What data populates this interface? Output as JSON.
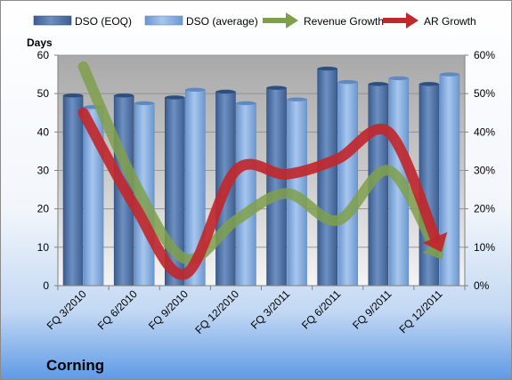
{
  "chart_data": {
    "type": "bar",
    "categories": [
      "FQ 3/2010",
      "FQ 6/2010",
      "FQ 9/2010",
      "FQ 12/2010",
      "FQ 3/2011",
      "FQ 6/2011",
      "FQ 9/2011",
      "FQ 12/2011"
    ],
    "series": [
      {
        "name": "DSO (EOQ)",
        "type": "bar",
        "axis": "left",
        "values": [
          49.5,
          49.5,
          49,
          50.5,
          51.5,
          56.5,
          52.5,
          52.5
        ],
        "color": "#4A6FA5"
      },
      {
        "name": "DSO (average)",
        "type": "bar",
        "axis": "left",
        "values": [
          46.5,
          47.5,
          51,
          47.5,
          48.5,
          53,
          54,
          55
        ],
        "color": "#7FA8DB"
      },
      {
        "name": "Revenue Growth",
        "type": "line",
        "axis": "right",
        "values": [
          0.57,
          0.27,
          0.07,
          0.17,
          0.24,
          0.17,
          0.3,
          0.08
        ],
        "color": "#7FA04B"
      },
      {
        "name": "AR Growth",
        "type": "line",
        "axis": "right",
        "values": [
          0.45,
          0.21,
          0.03,
          0.3,
          0.29,
          0.33,
          0.4,
          0.1
        ],
        "color": "#C0282E"
      }
    ],
    "ylabel": "Days",
    "ylim": [
      0,
      60
    ],
    "yticks": [
      "0",
      "10",
      "20",
      "30",
      "40",
      "50",
      "60"
    ],
    "y2lim": [
      0,
      0.6
    ],
    "y2ticks": [
      "0%",
      "10%",
      "20%",
      "30%",
      "40%",
      "50%",
      "60%"
    ],
    "grid": true,
    "legend": "top"
  },
  "company": "Corning",
  "legend": {
    "items": [
      "DSO (EOQ)",
      "DSO (average)",
      "Revenue Growth",
      "AR Growth"
    ]
  },
  "colors": {
    "bar_dark": "#4A6FA5",
    "bar_light": "#7FA8DB",
    "revenue_line": "#7FA04B",
    "ar_line": "#C0282E",
    "background_top": "#FFFFFF",
    "background_bottom": "#5E9AE6"
  }
}
